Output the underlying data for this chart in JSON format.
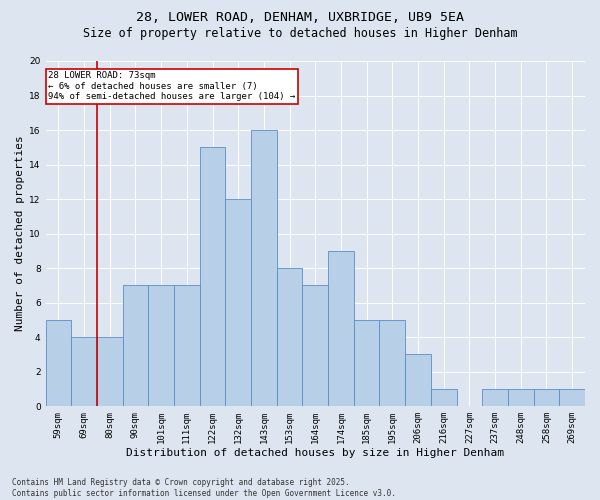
{
  "title1": "28, LOWER ROAD, DENHAM, UXBRIDGE, UB9 5EA",
  "title2": "Size of property relative to detached houses in Higher Denham",
  "xlabel": "Distribution of detached houses by size in Higher Denham",
  "ylabel": "Number of detached properties",
  "categories": [
    "59sqm",
    "69sqm",
    "80sqm",
    "90sqm",
    "101sqm",
    "111sqm",
    "122sqm",
    "132sqm",
    "143sqm",
    "153sqm",
    "164sqm",
    "174sqm",
    "185sqm",
    "195sqm",
    "206sqm",
    "216sqm",
    "227sqm",
    "237sqm",
    "248sqm",
    "258sqm",
    "269sqm"
  ],
  "values": [
    5,
    4,
    4,
    7,
    7,
    7,
    15,
    12,
    16,
    8,
    7,
    9,
    5,
    5,
    3,
    1,
    0,
    1,
    1,
    1,
    1
  ],
  "bar_color": "#b8cfe8",
  "bar_edge_color": "#5b8dc8",
  "vline_color": "#cc0000",
  "annotation_text": "28 LOWER ROAD: 73sqm\n← 6% of detached houses are smaller (7)\n94% of semi-detached houses are larger (104) →",
  "annotation_box_color": "#ffffff",
  "annotation_box_edge": "#cc0000",
  "ylim": [
    0,
    20
  ],
  "yticks": [
    0,
    2,
    4,
    6,
    8,
    10,
    12,
    14,
    16,
    18,
    20
  ],
  "bg_color": "#dde6f0",
  "plot_bg_color": "#dde6f0",
  "footer": "Contains HM Land Registry data © Crown copyright and database right 2025.\nContains public sector information licensed under the Open Government Licence v3.0.",
  "title1_fontsize": 9.5,
  "title2_fontsize": 8.5,
  "xlabel_fontsize": 8,
  "ylabel_fontsize": 8,
  "tick_fontsize": 6.5,
  "footer_fontsize": 5.5,
  "annotation_fontsize": 6.5
}
